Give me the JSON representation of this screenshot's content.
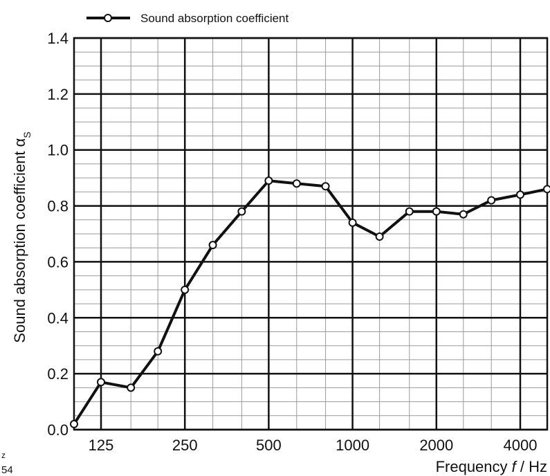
{
  "chart_data": {
    "type": "line",
    "title": "",
    "xlabel": "Frequency f / Hz",
    "xlabel_parts": {
      "before": "Frequency ",
      "var": "f",
      "after": " / Hz"
    },
    "ylabel": "Sound absorption coefficient αS",
    "ylabel_parts": {
      "main": "Sound absorption coefficient α",
      "sub": "S"
    },
    "x_scale": "log",
    "x_tick_labels": [
      "125",
      "250",
      "500",
      "1000",
      "2000",
      "4000"
    ],
    "x_tick_values": [
      125,
      250,
      500,
      1000,
      2000,
      4000
    ],
    "xlim": [
      100,
      5000
    ],
    "ylim": [
      0,
      1.4
    ],
    "y_tick_labels": [
      "0.0",
      "0.2",
      "0.4",
      "0.6",
      "0.8",
      "1.0",
      "1.2",
      "1.4"
    ],
    "y_tick_values": [
      0,
      0.2,
      0.4,
      0.6,
      0.8,
      1.0,
      1.2,
      1.4
    ],
    "grid": true,
    "legend_position": "top-left",
    "series": [
      {
        "name": "Sound absorption coefficient",
        "color": "#111111",
        "marker": "open-circle",
        "x": [
          100,
          125,
          160,
          200,
          250,
          315,
          400,
          500,
          630,
          800,
          1000,
          1250,
          1600,
          2000,
          2500,
          3150,
          4000,
          5000
        ],
        "values": [
          0.02,
          0.17,
          0.15,
          0.28,
          0.5,
          0.66,
          0.78,
          0.89,
          0.88,
          0.87,
          0.74,
          0.69,
          0.78,
          0.78,
          0.77,
          0.82,
          0.84,
          0.86
        ]
      }
    ]
  },
  "corner_fragments": {
    "top": "z",
    "bottom": "54"
  },
  "colors": {
    "line": "#111111",
    "major_grid": "#111111",
    "minor_grid": "#9a9a9a",
    "marker_fill": "#ffffff"
  }
}
